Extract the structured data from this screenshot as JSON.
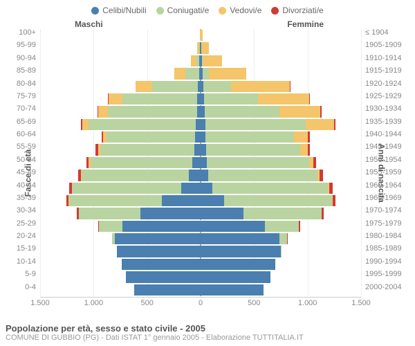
{
  "chart": {
    "type": "population-pyramid",
    "background_color": "#ffffff",
    "grid_color": "#eeeeee",
    "axis_color": "#cccccc",
    "center_line_color": "#aaaaaa",
    "text_color": "#666666",
    "label_fontsize": 11,
    "title_fontsize": 13,
    "legend": [
      {
        "label": "Celibi/Nubili",
        "color": "#4a7fb0"
      },
      {
        "label": "Coniugati/e",
        "color": "#b9d4a1"
      },
      {
        "label": "Vedovi/e",
        "color": "#f4c56a"
      },
      {
        "label": "Divorziati/e",
        "color": "#d23a35"
      }
    ],
    "left_group": "Maschi",
    "right_group": "Femmine",
    "y_axis_left_title": "Fasce di età",
    "y_axis_right_title": "Anni di nascita",
    "x_axis": {
      "max": 1500,
      "ticks": [
        "1.500",
        "1.000",
        "500",
        "0",
        "500",
        "1.000",
        "1.500"
      ],
      "tick_positions": [
        -1500,
        -1000,
        -500,
        0,
        500,
        1000,
        1500
      ]
    },
    "age_labels": [
      "100+",
      "95-99",
      "90-94",
      "85-89",
      "80-84",
      "75-79",
      "70-74",
      "65-69",
      "60-64",
      "55-59",
      "50-54",
      "45-49",
      "40-44",
      "35-39",
      "30-34",
      "25-29",
      "20-24",
      "15-19",
      "10-14",
      "5-9",
      "0-4"
    ],
    "birth_labels": [
      "≤ 1904",
      "1905-1909",
      "1910-1914",
      "1915-1919",
      "1920-1924",
      "1925-1929",
      "1930-1934",
      "1935-1939",
      "1940-1944",
      "1945-1949",
      "1950-1954",
      "1955-1959",
      "1960-1964",
      "1965-1969",
      "1970-1974",
      "1975-1979",
      "1980-1984",
      "1985-1989",
      "1990-1994",
      "1995-1999",
      "2000-2004"
    ],
    "males": [
      {
        "single": 0,
        "married": 0,
        "widowed": 5,
        "divorced": 0
      },
      {
        "single": 5,
        "married": 5,
        "widowed": 20,
        "divorced": 0
      },
      {
        "single": 10,
        "married": 30,
        "widowed": 50,
        "divorced": 0
      },
      {
        "single": 15,
        "married": 130,
        "widowed": 100,
        "divorced": 0
      },
      {
        "single": 25,
        "married": 430,
        "widowed": 150,
        "divorced": 5
      },
      {
        "single": 30,
        "married": 700,
        "widowed": 130,
        "divorced": 5
      },
      {
        "single": 35,
        "married": 830,
        "widowed": 90,
        "divorced": 10
      },
      {
        "single": 45,
        "married": 1000,
        "widowed": 60,
        "divorced": 15
      },
      {
        "single": 50,
        "married": 830,
        "widowed": 30,
        "divorced": 15
      },
      {
        "single": 60,
        "married": 880,
        "widowed": 20,
        "divorced": 20
      },
      {
        "single": 80,
        "married": 950,
        "widowed": 15,
        "divorced": 25
      },
      {
        "single": 110,
        "married": 1000,
        "widowed": 10,
        "divorced": 25
      },
      {
        "single": 180,
        "married": 1020,
        "widowed": 5,
        "divorced": 25
      },
      {
        "single": 360,
        "married": 870,
        "widowed": 3,
        "divorced": 20
      },
      {
        "single": 560,
        "married": 580,
        "widowed": 0,
        "divorced": 15
      },
      {
        "single": 730,
        "married": 220,
        "widowed": 0,
        "divorced": 5
      },
      {
        "single": 800,
        "married": 30,
        "widowed": 0,
        "divorced": 0
      },
      {
        "single": 780,
        "married": 0,
        "widowed": 0,
        "divorced": 0
      },
      {
        "single": 740,
        "married": 0,
        "widowed": 0,
        "divorced": 0
      },
      {
        "single": 700,
        "married": 0,
        "widowed": 0,
        "divorced": 0
      },
      {
        "single": 620,
        "married": 0,
        "widowed": 0,
        "divorced": 0
      }
    ],
    "females": [
      {
        "single": 0,
        "married": 0,
        "widowed": 20,
        "divorced": 0
      },
      {
        "single": 5,
        "married": 0,
        "widowed": 70,
        "divorced": 0
      },
      {
        "single": 10,
        "married": 10,
        "widowed": 180,
        "divorced": 0
      },
      {
        "single": 20,
        "married": 60,
        "widowed": 350,
        "divorced": 0
      },
      {
        "single": 25,
        "married": 260,
        "widowed": 550,
        "divorced": 5
      },
      {
        "single": 35,
        "married": 500,
        "widowed": 480,
        "divorced": 5
      },
      {
        "single": 40,
        "married": 700,
        "widowed": 380,
        "divorced": 10
      },
      {
        "single": 45,
        "married": 940,
        "widowed": 260,
        "divorced": 15
      },
      {
        "single": 45,
        "married": 830,
        "widowed": 130,
        "divorced": 15
      },
      {
        "single": 50,
        "married": 880,
        "widowed": 70,
        "divorced": 20
      },
      {
        "single": 55,
        "married": 960,
        "widowed": 40,
        "divorced": 25
      },
      {
        "single": 70,
        "married": 1020,
        "widowed": 25,
        "divorced": 30
      },
      {
        "single": 110,
        "married": 1080,
        "widowed": 15,
        "divorced": 30
      },
      {
        "single": 220,
        "married": 1010,
        "widowed": 8,
        "divorced": 25
      },
      {
        "single": 400,
        "married": 730,
        "widowed": 3,
        "divorced": 15
      },
      {
        "single": 600,
        "married": 320,
        "widowed": 0,
        "divorced": 8
      },
      {
        "single": 740,
        "married": 70,
        "widowed": 0,
        "divorced": 2
      },
      {
        "single": 750,
        "married": 5,
        "widowed": 0,
        "divorced": 0
      },
      {
        "single": 700,
        "married": 0,
        "widowed": 0,
        "divorced": 0
      },
      {
        "single": 650,
        "married": 0,
        "widowed": 0,
        "divorced": 0
      },
      {
        "single": 590,
        "married": 0,
        "widowed": 0,
        "divorced": 0
      }
    ],
    "footer_title": "Popolazione per età, sesso e stato civile - 2005",
    "footer_sub": "COMUNE DI GUBBIO (PG) - Dati ISTAT 1° gennaio 2005 - Elaborazione TUTTITALIA.IT"
  }
}
